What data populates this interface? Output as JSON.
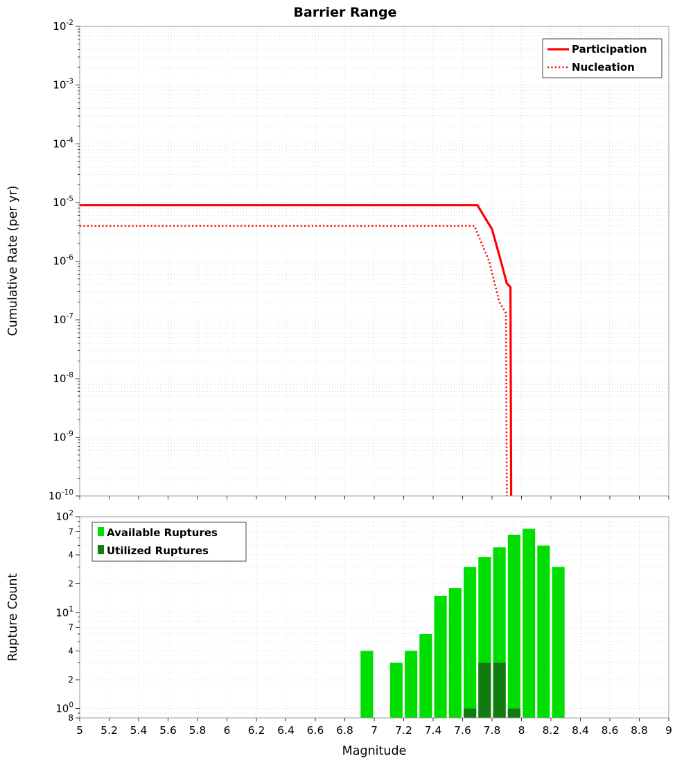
{
  "title": "Barrier Range",
  "colors": {
    "participation": "#ff0000",
    "nucleation": "#ff0000",
    "available": "#00dd00",
    "utilized": "#117a11",
    "grid": "#d6d6d6",
    "frame": "#9a9a9a"
  },
  "chart_data": [
    {
      "type": "line",
      "title": "Barrier Range",
      "xlabel": "",
      "ylabel": "Cumulative Rate (per yr)",
      "xlim": [
        5,
        9
      ],
      "ylog": true,
      "ylim": [
        1e-10,
        0.01
      ],
      "grid": true,
      "show_x_labels": false,
      "x_ticks": [
        "5",
        "5.2",
        "5.4",
        "5.6",
        "5.8",
        "6",
        "6.2",
        "6.4",
        "6.6",
        "6.8",
        "7",
        "7.2",
        "7.4",
        "7.6",
        "7.8",
        "8",
        "8.2",
        "8.4",
        "8.6",
        "8.8",
        "9"
      ],
      "y_ticks": [
        {
          "v": 0.01,
          "p": "-2"
        },
        {
          "v": 0.001,
          "p": "-3"
        },
        {
          "v": 0.0001,
          "p": "-4"
        },
        {
          "v": 1e-05,
          "p": "-5"
        },
        {
          "v": 1e-06,
          "p": "-6"
        },
        {
          "v": 1e-07,
          "p": "-7"
        },
        {
          "v": 1e-08,
          "p": "-8"
        },
        {
          "v": 1e-09,
          "p": "-9"
        },
        {
          "v": 1e-10,
          "p": "-10"
        }
      ],
      "legend": {
        "position": "top-right",
        "items": [
          "Participation",
          "Nucleation"
        ]
      },
      "series": [
        {
          "name": "Participation",
          "line": "solid",
          "color_key": "participation",
          "points": [
            [
              5,
              9e-06
            ],
            [
              7.7,
              9e-06
            ],
            [
              7.8,
              3.5e-06
            ],
            [
              7.86,
              1e-06
            ],
            [
              7.9,
              4.2e-07
            ],
            [
              7.925,
              3.6e-07
            ],
            [
              7.93,
              1e-10
            ]
          ]
        },
        {
          "name": "Nucleation",
          "line": "dotted",
          "color_key": "nucleation",
          "points": [
            [
              5,
              4e-06
            ],
            [
              7.68,
              4e-06
            ],
            [
              7.78,
              1e-06
            ],
            [
              7.85,
              2e-07
            ],
            [
              7.895,
              1.3e-07
            ],
            [
              7.9,
              1e-10
            ]
          ]
        }
      ]
    },
    {
      "type": "bar",
      "title": "",
      "xlabel": "Magnitude",
      "ylabel": "Rupture Count",
      "xlim": [
        5,
        9
      ],
      "ylog": true,
      "ylim": [
        0.8,
        100
      ],
      "grid": true,
      "show_x_labels": true,
      "bin_width": 0.1,
      "x_ticks": [
        "5",
        "5.2",
        "5.4",
        "5.6",
        "5.8",
        "6",
        "6.2",
        "6.4",
        "6.6",
        "6.8",
        "7",
        "7.2",
        "7.4",
        "7.6",
        "7.8",
        "8",
        "8.2",
        "8.4",
        "8.6",
        "8.8",
        "9"
      ],
      "y_ticks": [
        {
          "v": 100,
          "p": "2"
        },
        {
          "v": 70,
          "l": "7"
        },
        {
          "v": 40,
          "l": "4"
        },
        {
          "v": 20,
          "l": "2"
        },
        {
          "v": 10,
          "p": "1"
        },
        {
          "v": 7,
          "l": "7"
        },
        {
          "v": 4,
          "l": "4"
        },
        {
          "v": 2,
          "l": "2"
        },
        {
          "v": 1,
          "p": "0"
        },
        {
          "v": 0.8,
          "l": "8"
        }
      ],
      "legend": {
        "position": "top-left",
        "items": [
          "Available Ruptures",
          "Utilized Ruptures"
        ]
      },
      "series": [
        {
          "name": "Available Ruptures",
          "color_key": "available",
          "bars": [
            [
              6.95,
              4
            ],
            [
              7.15,
              3
            ],
            [
              7.25,
              4
            ],
            [
              7.35,
              6
            ],
            [
              7.45,
              15
            ],
            [
              7.55,
              18
            ],
            [
              7.65,
              30
            ],
            [
              7.75,
              38
            ],
            [
              7.85,
              48
            ],
            [
              7.95,
              65
            ],
            [
              8.05,
              75
            ],
            [
              8.15,
              50
            ],
            [
              8.25,
              30
            ]
          ]
        },
        {
          "name": "Utilized Ruptures",
          "color_key": "utilized",
          "bars": [
            [
              7.65,
              1
            ],
            [
              7.75,
              3
            ],
            [
              7.85,
              3
            ],
            [
              7.95,
              1
            ]
          ]
        }
      ]
    }
  ]
}
